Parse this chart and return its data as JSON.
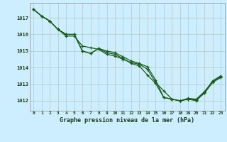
{
  "xlabel": "Graphe pression niveau de la mer (hPa)",
  "bg_color": "#cceeff",
  "grid_color": "#b8cece",
  "line_color": "#1a5c1a",
  "xlim": [
    -0.5,
    23.5
  ],
  "ylim": [
    1011.4,
    1017.9
  ],
  "yticks": [
    1012,
    1013,
    1014,
    1015,
    1016,
    1017
  ],
  "xticks": [
    0,
    1,
    2,
    3,
    4,
    5,
    6,
    7,
    8,
    9,
    10,
    11,
    12,
    13,
    14,
    15,
    16,
    17,
    18,
    19,
    20,
    21,
    22,
    23
  ],
  "series1": [
    1017.5,
    1017.1,
    1016.8,
    1016.3,
    1015.9,
    1015.9,
    1015.3,
    1015.2,
    1015.1,
    1014.8,
    1014.7,
    1014.5,
    1014.3,
    1014.2,
    1013.9,
    1013.1,
    1012.6,
    1012.1,
    1012.0,
    1012.1,
    1012.0,
    1012.5,
    1013.2,
    1013.5
  ],
  "series2": [
    1017.5,
    1017.1,
    1016.8,
    1016.3,
    1016.0,
    1016.0,
    1015.0,
    1014.85,
    1015.15,
    1014.9,
    1014.8,
    1014.55,
    1014.25,
    1014.1,
    1013.55,
    1013.05,
    1012.2,
    1012.1,
    1012.0,
    1012.1,
    1012.05,
    1012.45,
    1013.1,
    1013.4
  ],
  "series3": [
    1017.5,
    1017.1,
    1016.8,
    1016.3,
    1016.0,
    1016.0,
    1015.0,
    1014.85,
    1015.15,
    1015.0,
    1014.9,
    1014.65,
    1014.4,
    1014.25,
    1014.05,
    1013.25,
    1012.2,
    1012.1,
    1012.0,
    1012.15,
    1012.1,
    1012.55,
    1013.15,
    1013.45
  ]
}
